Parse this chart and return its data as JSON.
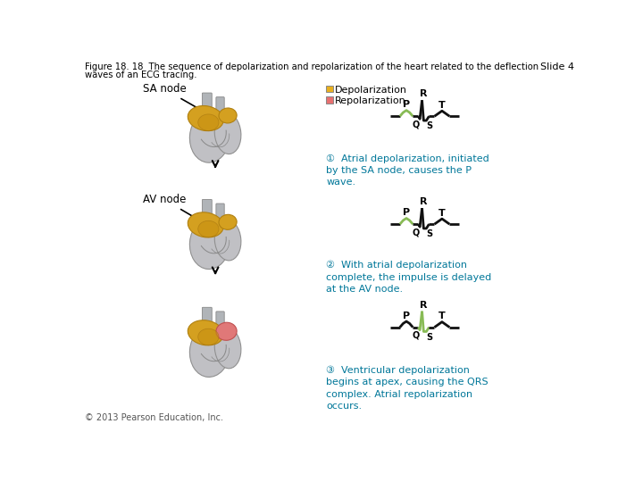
{
  "title_line1": "Figure 18. 18  The sequence of depolarization and repolarization of the heart related to the deflection",
  "title_line2": "waves of an ECG tracing.",
  "slide_label": "Slide 4",
  "copyright": "© 2013 Pearson Education, Inc.",
  "background_color": "#ffffff",
  "legend_depol_color": "#e8b020",
  "legend_repol_color": "#e87070",
  "ecg_base_color": "#111111",
  "ecg_green_color": "#88bb55",
  "annotation_color": "#007799",
  "heart1_label": "SA node",
  "heart2_label": "AV node",
  "anno1": "①  Atrial depolarization, initiated\nby the SA node, causes the P\nwave.",
  "anno2": "②  With atrial depolarization\ncomplete, the impulse is delayed\nat the AV node.",
  "anno3": "③  Ventricular depolarization\nbegins at apex, causing the QRS\ncomplex. Atrial repolarization\noccurs.",
  "heart_body_color": "#c0c0c4",
  "heart_body_edge": "#909090",
  "heart_gold_color": "#d4a020",
  "heart_gold_edge": "#b08010",
  "heart_pink_color": "#e07878",
  "heart_pink_edge": "#c05050",
  "vessel_color": "#b0b4b8",
  "vessel_edge": "#888888"
}
